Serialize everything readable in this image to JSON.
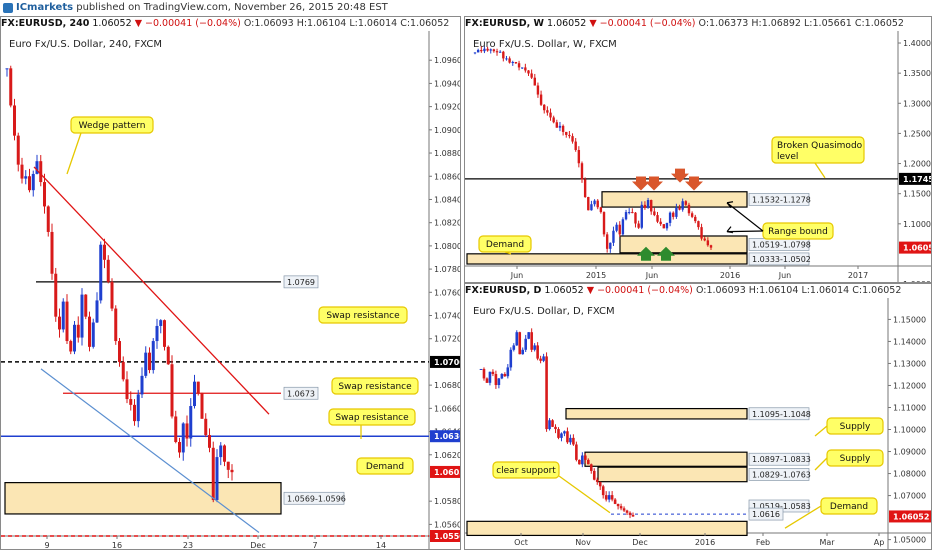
{
  "topbar": {
    "brand": "ICmarkets",
    "text": "published on TradingView.com, November 26, 2015 20:48 EST"
  },
  "panels": {
    "left": {
      "header": {
        "symbol": "FX:EURUSD, 240",
        "price": "1.06052",
        "change": "▼ −0.00041 (−0.04%)",
        "o": "O:1.06093",
        "h": "H:1.06104",
        "l": "L:1.06014",
        "c": "C:1.06052"
      },
      "title": "Euro Fx/U.S. Dollar, 240, FXCM"
    },
    "weekly": {
      "header": {
        "symbol": "FX:EURUSD, W",
        "price": "1.06052",
        "change": "▼ −0.00041 (−0.04%)",
        "o": "O:1.06373",
        "h": "H:1.06892",
        "l": "L:1.05661",
        "c": "C:1.06052"
      },
      "title": "Euro Fx/U.S. Dollar, W, FXCM"
    },
    "daily": {
      "header": {
        "symbol": "FX:EURUSD, D",
        "price": "1.06052",
        "change": "▼ −0.00041 (−0.04%)",
        "o": "O:1.06093",
        "h": "H:1.06104",
        "l": "L:1.06014",
        "c": "C:1.06052"
      },
      "title": "Euro Fx/U.S. Dollar, D, FXCM"
    }
  },
  "colors": {
    "up": "#1f3fcf",
    "down": "#d81a1a",
    "zone_fill": "#fbe6b4",
    "callout": "#ffff66",
    "callout_border": "#e6c800"
  },
  "chart_data": [
    {
      "id": "h4",
      "type": "candlestick",
      "title": "Euro Fx/U.S. Dollar, 240, FXCM",
      "ylim": [
        1.055,
        1.098
      ],
      "y_ticks": [
        "1.09600",
        "1.09400",
        "1.09200",
        "1.09000",
        "1.08800",
        "1.08600",
        "1.08400",
        "1.08200",
        "1.08000",
        "1.07800",
        "1.07600",
        "1.07400",
        "1.07200",
        "1.06800",
        "1.06600",
        "1.06400",
        "1.06200",
        "1.05800",
        "1.05600"
      ],
      "y_tick_values": [
        1.096,
        1.094,
        1.092,
        1.09,
        1.088,
        1.086,
        1.084,
        1.082,
        1.08,
        1.078,
        1.076,
        1.074,
        1.072,
        1.068,
        1.066,
        1.064,
        1.062,
        1.058,
        1.056
      ],
      "x_ticks": [
        "9",
        "16",
        "23",
        "Dec",
        "7",
        "14"
      ],
      "x_tick_index": [
        3,
        22,
        41,
        61,
        80,
        100
      ],
      "closes": [
        1.0953,
        1.0921,
        1.0895,
        1.087,
        1.0858,
        1.086,
        1.0848,
        1.0862,
        1.0873,
        1.0855,
        1.0834,
        1.0812,
        1.0776,
        1.0739,
        1.0728,
        1.0752,
        1.0718,
        1.0709,
        1.0732,
        1.0721,
        1.0758,
        1.0739,
        1.0713,
        1.0734,
        1.0753,
        1.0801,
        1.0788,
        1.0769,
        1.0746,
        1.0718,
        1.07,
        1.0685,
        1.0668,
        1.0663,
        1.0649,
        1.0672,
        1.0688,
        1.0708,
        1.0693,
        1.0718,
        1.0731,
        1.0736,
        1.0713,
        1.0698,
        1.0653,
        1.0631,
        1.0622,
        1.0647,
        1.0634,
        1.0662,
        1.0683,
        1.0673,
        1.0651,
        1.0637,
        1.0626,
        1.0581,
        1.0618,
        1.0628,
        1.0614,
        1.0607,
        1.0605
      ],
      "last_price": "1.06052",
      "levels": [
        {
          "label": "1.07000",
          "value": 1.07,
          "style": "dashed-black"
        },
        {
          "label": "1.06360",
          "value": 1.0636,
          "style": "solid-blue"
        },
        {
          "label": "1.05500",
          "value": 1.055,
          "style": "dashed-red"
        },
        {
          "label": "1.0769",
          "value": 1.0769,
          "style": "solid-black"
        },
        {
          "label": "1.0673",
          "value": 1.0673,
          "style": "solid-red"
        }
      ],
      "zones": [
        {
          "label": "1.0569-1.0596",
          "low": 1.0569,
          "high": 1.0596
        }
      ],
      "annotations": [
        "Wedge pattern",
        "Swap resistance",
        "Swap resistance",
        "Swap resistance",
        "Demand"
      ]
    },
    {
      "id": "weekly",
      "type": "candlestick",
      "title": "Euro Fx/U.S. Dollar, W, FXCM",
      "ylim": [
        1.03,
        1.41
      ],
      "y_ticks": [
        "1.40000",
        "1.35000",
        "1.30000",
        "1.25000",
        "1.20000",
        "1.15000",
        "1.10000",
        "1.00000"
      ],
      "y_tick_values": [
        1.4,
        1.35,
        1.3,
        1.25,
        1.2,
        1.15,
        1.1,
        1.0
      ],
      "x_ticks": [
        "Jun",
        "2015",
        "Jun",
        "2016",
        "Jun",
        "2017"
      ],
      "closes": [
        1.3845,
        1.3885,
        1.3865,
        1.3905,
        1.3875,
        1.3895,
        1.3865,
        1.3845,
        1.3855,
        1.3745,
        1.3745,
        1.3675,
        1.3685,
        1.3665,
        1.3595,
        1.3595,
        1.3545,
        1.3495,
        1.3425,
        1.3295,
        1.3145,
        1.2975,
        1.2885,
        1.2845,
        1.2765,
        1.2685,
        1.2595,
        1.2625,
        1.2525,
        1.2475,
        1.2455,
        1.2365,
        1.2225,
        1.2005,
        1.1735,
        1.1445,
        1.1225,
        1.1325,
        1.1385,
        1.1275,
        1.1195,
        1.0825,
        1.0585,
        1.0685,
        1.0885,
        1.0985,
        1.0825,
        1.1075,
        1.1195,
        1.1195,
        1.1185,
        1.1005,
        1.0935,
        1.1315,
        1.1265,
        1.1395,
        1.1205,
        1.1145,
        1.1035,
        1.0995,
        1.0925,
        1.1015,
        1.1185,
        1.1115,
        1.1265,
        1.1235,
        1.1375,
        1.1315,
        1.1175,
        1.1115,
        1.1045,
        1.0945,
        1.0755,
        1.0725,
        1.0645,
        1.0605
      ],
      "last_price": "1.06052",
      "levels": [
        {
          "label": "1.17456",
          "value": 1.17456,
          "style": "solid-black"
        }
      ],
      "zones": [
        {
          "label": "1.1532-1.1278",
          "low": 1.1278,
          "high": 1.1532
        },
        {
          "label": "1.0519-1.0798",
          "low": 1.0519,
          "high": 1.0798
        },
        {
          "label": "1.0333-1.0502",
          "low": 1.0333,
          "high": 1.0502
        }
      ],
      "annotations": [
        "Broken Quasimodo level",
        "Range bound",
        "Demand"
      ]
    },
    {
      "id": "daily",
      "type": "candlestick",
      "title": "Euro Fx/U.S. Dollar, D, FXCM",
      "ylim": [
        1.053,
        1.157
      ],
      "y_ticks": [
        "1.15000",
        "1.14000",
        "1.13000",
        "1.12000",
        "1.11000",
        "1.10000",
        "1.09000",
        "1.08000",
        "1.07000",
        "1.05000"
      ],
      "y_tick_values": [
        1.15,
        1.14,
        1.13,
        1.12,
        1.11,
        1.1,
        1.09,
        1.08,
        1.07,
        1.05
      ],
      "x_ticks": [
        "Oct",
        "Nov",
        "Dec",
        "2016",
        "Feb",
        "Mar",
        "Ap"
      ],
      "closes": [
        1.1275,
        1.1232,
        1.1212,
        1.1262,
        1.1252,
        1.1202,
        1.1232,
        1.1252,
        1.1242,
        1.1282,
        1.1362,
        1.1382,
        1.1442,
        1.1342,
        1.1362,
        1.1412,
        1.1442,
        1.1362,
        1.1382,
        1.1322,
        1.1312,
        1.1332,
        1.1002,
        1.1042,
        1.1012,
        1.1002,
        1.0962,
        1.0982,
        1.0992,
        1.0942,
        1.0962,
        1.0932,
        1.0862,
        1.0842,
        1.0882,
        1.0862,
        1.0842,
        1.0812,
        1.0772,
        1.0762,
        1.0742,
        1.0702,
        1.0682,
        1.0702,
        1.0682,
        1.0662,
        1.0652,
        1.0642,
        1.0632,
        1.0622,
        1.0612,
        1.0605
      ],
      "last_price": "1.06052",
      "levels": [
        {
          "label": "1.0616",
          "value": 1.0616,
          "style": "dashed-blue"
        }
      ],
      "zones": [
        {
          "label": "1.1095-1.1048",
          "low": 1.1048,
          "high": 1.1095
        },
        {
          "label": "1.0897-1.0833",
          "low": 1.0833,
          "high": 1.0897
        },
        {
          "label": "1.0829-1.0763",
          "low": 1.0763,
          "high": 1.0829
        },
        {
          "label": "1.0519-1.0583",
          "low": 1.0519,
          "high": 1.0583
        }
      ],
      "annotations": [
        "Supply",
        "Supply",
        "clear support",
        "Demand"
      ]
    }
  ]
}
